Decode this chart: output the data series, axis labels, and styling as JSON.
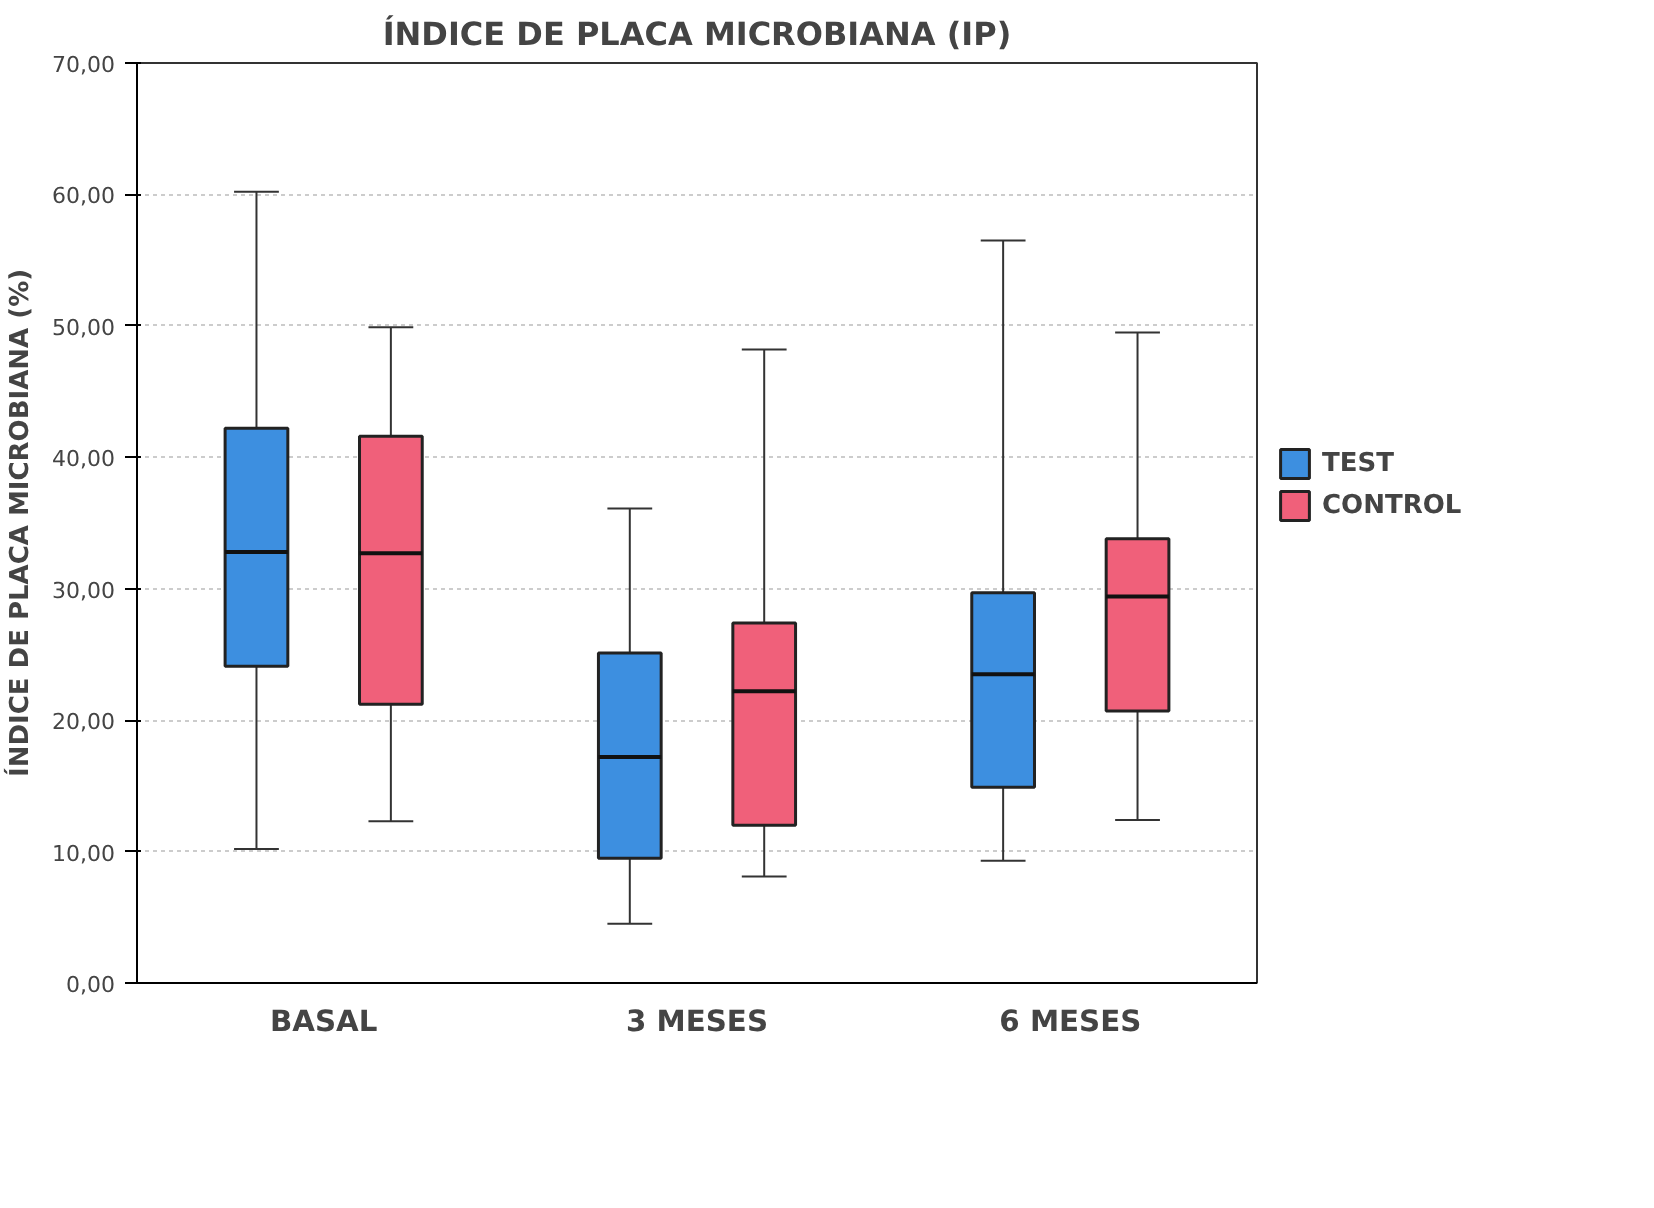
{
  "chart_data": {
    "type": "box",
    "title": "ÍNDICE DE PLACA MICROBIANA (IP)",
    "ylabel": "ÍNDICE DE PLACA MICROBIANA (%)",
    "categories": [
      "BASAL",
      "3 MESES",
      "6 MESES"
    ],
    "series": [
      {
        "name": "TEST",
        "color": "#3d8fe0",
        "boxes": [
          {
            "low": 10.2,
            "q1": 24.1,
            "median": 32.8,
            "q3": 42.2,
            "high": 60.2
          },
          {
            "low": 4.5,
            "q1": 9.5,
            "median": 17.2,
            "q3": 25.1,
            "high": 36.1
          },
          {
            "low": 9.3,
            "q1": 14.9,
            "median": 23.5,
            "q3": 29.7,
            "high": 56.5
          }
        ]
      },
      {
        "name": "CONTROL",
        "color": "#f0607a",
        "boxes": [
          {
            "low": 12.3,
            "q1": 21.2,
            "median": 32.7,
            "q3": 41.6,
            "high": 49.9
          },
          {
            "low": 8.1,
            "q1": 12.0,
            "median": 22.2,
            "q3": 27.4,
            "high": 48.2
          },
          {
            "low": 12.4,
            "q1": 20.7,
            "median": 29.4,
            "q3": 33.8,
            "high": 49.5
          }
        ]
      }
    ],
    "ylim": [
      0,
      70
    ],
    "yticks": [
      {
        "value": 0,
        "label": "0,00"
      },
      {
        "value": 10,
        "label": "10,00"
      },
      {
        "value": 20,
        "label": "20,00"
      },
      {
        "value": 30,
        "label": "30,00"
      },
      {
        "value": 40,
        "label": "40,00"
      },
      {
        "value": 50,
        "label": "50,00"
      },
      {
        "value": 60,
        "label": "60,00"
      },
      {
        "value": 70,
        "label": "70,00"
      }
    ],
    "grid": "y",
    "legend": "right"
  }
}
